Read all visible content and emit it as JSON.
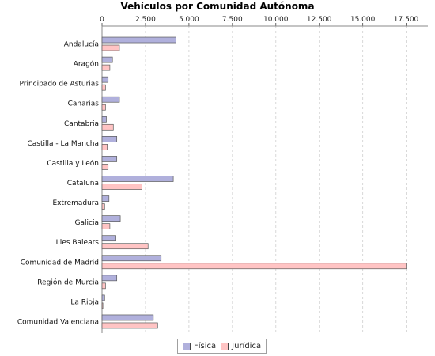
{
  "chart_data": {
    "type": "bar",
    "orientation": "horizontal",
    "title": "Vehículos por Comunidad Autónoma",
    "xlabel": "",
    "ylabel": "",
    "xlim": [
      0,
      18750
    ],
    "ticks": [
      "0",
      "2.500",
      "5.000",
      "7.500",
      "10.000",
      "12.500",
      "15.000",
      "17.500"
    ],
    "tick_values": [
      0,
      2500,
      5000,
      7500,
      10000,
      12500,
      15000,
      17500
    ],
    "grid": true,
    "legend_position": "bottom",
    "categories": [
      "Andalucía",
      "Aragón",
      "Principado de Asturias",
      "Canarias",
      "Cantabria",
      "Castilla - La Mancha",
      "Castilla y León",
      "Cataluña",
      "Extremadura",
      "Galicia",
      "Illes Balears",
      "Comunidad de Madrid",
      "Región de Murcia",
      "La Rioja",
      "Comunidad Valenciana"
    ],
    "series": [
      {
        "name": "Física",
        "color": "#b0b0dc",
        "values": [
          4250,
          600,
          350,
          1000,
          250,
          850,
          850,
          4100,
          400,
          1050,
          800,
          3400,
          850,
          150,
          2950
        ]
      },
      {
        "name": "Jurídica",
        "color": "#ffc4c4",
        "values": [
          1000,
          450,
          200,
          200,
          650,
          300,
          350,
          2300,
          150,
          450,
          2650,
          17500,
          200,
          50,
          3200
        ]
      }
    ]
  }
}
